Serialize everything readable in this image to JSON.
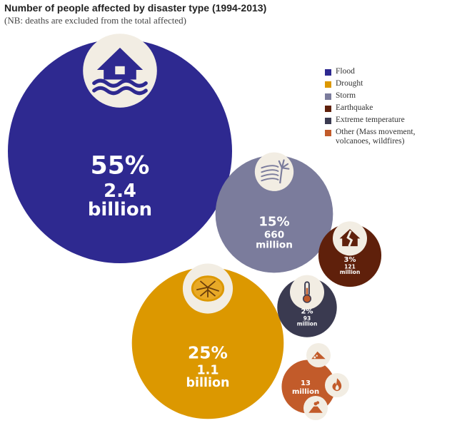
{
  "chart_data": {
    "type": "bubble",
    "title": "Number of people affected by disaster type (1994-2013)",
    "subtitle": "(NB: deaths are excluded from the total affected)",
    "unit": "people affected",
    "series": [
      {
        "name": "Flood",
        "percent": 55,
        "affected_billions": 2.4,
        "pct_label": "55%",
        "value_label_1": "2.4",
        "value_label_2": "billion",
        "color": "#2e2990",
        "icon": "flooded-house-icon"
      },
      {
        "name": "Drought",
        "percent": 25,
        "affected_billions": 1.1,
        "pct_label": "25%",
        "value_label_1": "1.1",
        "value_label_2": "billion",
        "color": "#dc9800",
        "icon": "cracked-earth-icon"
      },
      {
        "name": "Storm",
        "percent": 15,
        "affected_billions": 0.66,
        "pct_label": "15%",
        "value_label_1": "660",
        "value_label_2": "million",
        "color": "#7b7c9c",
        "icon": "storm-wind-icon"
      },
      {
        "name": "Earthquake",
        "percent": 3,
        "affected_billions": 0.121,
        "pct_label": "3%",
        "value_label_1": "121",
        "value_label_2": "million",
        "color": "#5f200b",
        "icon": "cracked-house-icon"
      },
      {
        "name": "Extreme temperature",
        "percent": 2,
        "affected_billions": 0.093,
        "pct_label": "2%",
        "value_label_1": "93",
        "value_label_2": "million",
        "color": "#3a3a50",
        "icon": "thermometer-icon"
      },
      {
        "name": "Other (Mass movement, volcanoes, wildfires)",
        "affected_billions": 0.013,
        "pct_label": "",
        "value_label_1": "13",
        "value_label_2": "million",
        "color": "#c25b2a",
        "icons": [
          "landslide-icon",
          "wildfire-icon",
          "volcano-icon"
        ]
      }
    ],
    "legend_position": "top-right"
  }
}
